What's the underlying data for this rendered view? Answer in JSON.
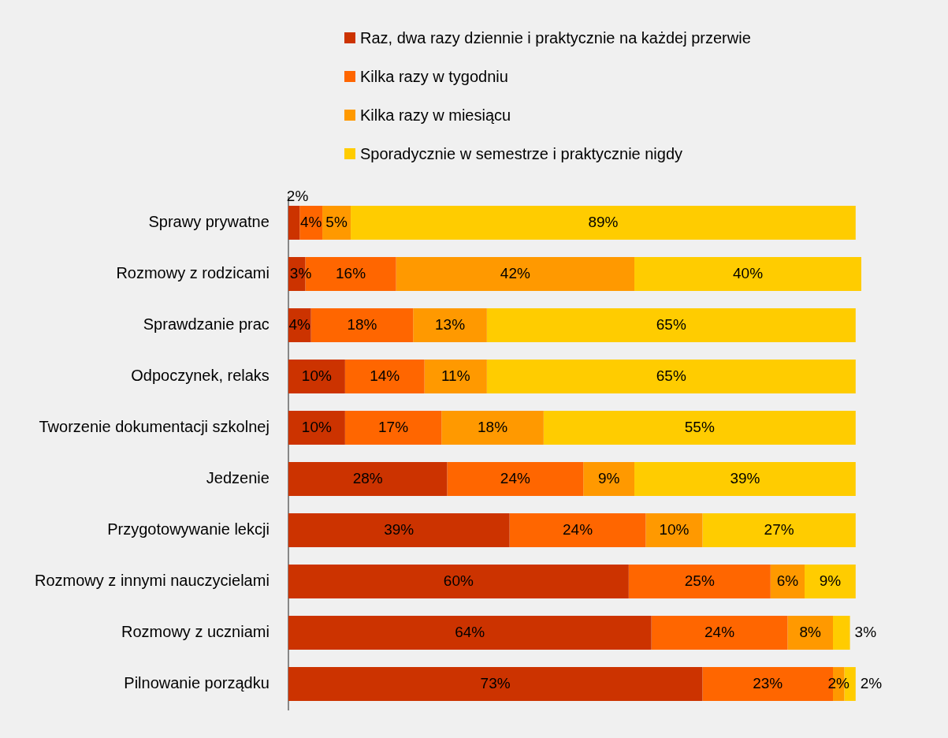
{
  "chart_data": {
    "type": "bar",
    "orientation": "horizontal",
    "stacked": true,
    "legend": "top",
    "categories": [
      "Sprawy prywatne",
      "Rozmowy z rodzicami",
      "Sprawdzanie prac",
      "Odpoczynek, relaks",
      "Tworzenie dokumentacji szkolnej",
      "Jedzenie",
      "Przygotowywanie lekcji",
      "Rozmowy z innymi nauczycielami",
      "Rozmowy z uczniami",
      "Pilnowanie porządku"
    ],
    "series": [
      {
        "name": "Raz, dwa razy dziennie i praktycznie na każdej przerwie",
        "color": "#cc3300",
        "values": [
          2,
          3,
          4,
          10,
          10,
          28,
          39,
          60,
          64,
          73
        ],
        "value_labels": [
          "2%",
          "3%",
          "4%",
          "10%",
          "10%",
          "28%",
          "39%",
          "60%",
          "64%",
          "73%"
        ]
      },
      {
        "name": "Kilka razy w tygodniu",
        "color": "#ff6600",
        "values": [
          4,
          16,
          18,
          14,
          17,
          24,
          24,
          25,
          24,
          23
        ],
        "value_labels": [
          "4%",
          "16%",
          "18%",
          "14%",
          "17%",
          "24%",
          "24%",
          "25%",
          "24%",
          "23%"
        ]
      },
      {
        "name": "Kilka razy w miesiącu",
        "color": "#ff9900",
        "values": [
          5,
          42,
          13,
          11,
          18,
          9,
          10,
          6,
          8,
          2
        ],
        "value_labels": [
          "5%",
          "42%",
          "13%",
          "11%",
          "18%",
          "9%",
          "10%",
          "6%",
          "8%",
          "2%"
        ]
      },
      {
        "name": "Sporadycznie w semestrze i praktycznie nigdy",
        "color": "#ffcc00",
        "values": [
          89,
          40,
          65,
          65,
          55,
          39,
          27,
          9,
          3,
          2
        ],
        "value_labels": [
          "89%",
          "40%",
          "65%",
          "65%",
          "55%",
          "39%",
          "27%",
          "9%",
          "3%",
          "2%"
        ]
      }
    ]
  }
}
